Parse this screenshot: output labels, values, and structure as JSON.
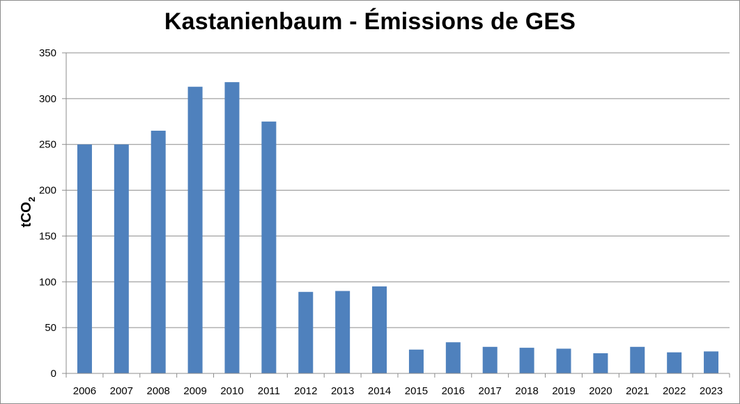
{
  "chart_data": {
    "type": "bar",
    "title": "Kastanienbaum - Émissions de GES",
    "ylabel": "tCO",
    "ylabel_subscript": "2",
    "xlabel": "",
    "categories": [
      "2006",
      "2007",
      "2008",
      "2009",
      "2010",
      "2011",
      "2012",
      "2013",
      "2014",
      "2015",
      "2016",
      "2017",
      "2018",
      "2019",
      "2020",
      "2021",
      "2022",
      "2023"
    ],
    "values": [
      250,
      250,
      265,
      313,
      318,
      275,
      89,
      90,
      95,
      26,
      34,
      29,
      28,
      27,
      22,
      29,
      23,
      24
    ],
    "ylim": [
      0,
      350
    ],
    "yticks": [
      0,
      50,
      100,
      150,
      200,
      250,
      300,
      350
    ],
    "grid": true,
    "legend": "none",
    "bar_color": "#4F81BD",
    "grid_color": "#8C8C8C"
  }
}
